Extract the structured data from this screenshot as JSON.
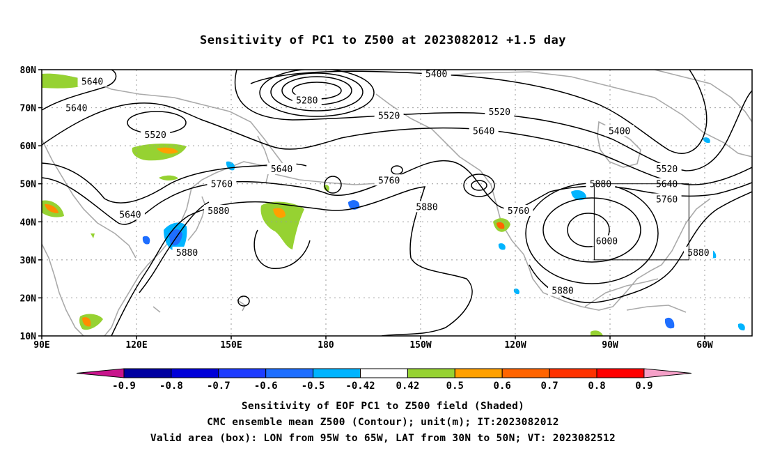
{
  "title": "Sensitivity of PC1 to Z500 at 2023082012 +1.5 day",
  "map": {
    "lat_ticks": [
      "80N",
      "70N",
      "60N",
      "50N",
      "40N",
      "30N",
      "20N",
      "10N"
    ],
    "lon_ticks": [
      "90E",
      "120E",
      "150E",
      "180",
      "150W",
      "120W",
      "90W",
      "60W"
    ],
    "contour_labels": [
      {
        "text": "5640",
        "lon": 106,
        "lat": 77
      },
      {
        "text": "5640",
        "lon": 101,
        "lat": 70
      },
      {
        "text": "5520",
        "lon": 126,
        "lat": 63
      },
      {
        "text": "5280",
        "lon": 174,
        "lat": 72
      },
      {
        "text": "5400",
        "lon": -145,
        "lat": 79
      },
      {
        "text": "5520",
        "lon": -160,
        "lat": 68
      },
      {
        "text": "5520",
        "lon": -125,
        "lat": 69
      },
      {
        "text": "5640",
        "lon": -130,
        "lat": 64
      },
      {
        "text": "5400",
        "lon": -87,
        "lat": 64
      },
      {
        "text": "5640",
        "lon": 166,
        "lat": 54
      },
      {
        "text": "5760",
        "lon": 147,
        "lat": 50
      },
      {
        "text": "5880",
        "lon": 146,
        "lat": 43
      },
      {
        "text": "5640",
        "lon": 118,
        "lat": 42
      },
      {
        "text": "5760",
        "lon": -160,
        "lat": 51
      },
      {
        "text": "5880",
        "lon": -148,
        "lat": 44
      },
      {
        "text": "5760",
        "lon": -119,
        "lat": 43
      },
      {
        "text": "5880",
        "lon": -93,
        "lat": 50
      },
      {
        "text": "5520",
        "lon": -72,
        "lat": 54
      },
      {
        "text": "5640",
        "lon": -72,
        "lat": 50
      },
      {
        "text": "5760",
        "lon": -72,
        "lat": 46
      },
      {
        "text": "6000",
        "lon": -91,
        "lat": 35
      },
      {
        "text": "5880",
        "lon": 136,
        "lat": 32
      },
      {
        "text": "5880",
        "lon": -62,
        "lat": 32
      },
      {
        "text": "5880",
        "lon": -105,
        "lat": 22
      }
    ],
    "valid_box": {
      "lon_west": -95,
      "lon_east": -65,
      "lat_south": 30,
      "lat_north": 50
    }
  },
  "colorbar": {
    "left_end_color": "#c8148c",
    "right_end_color": "#f5a0c8",
    "colors": [
      "#0000a0",
      "#0000d8",
      "#1e3cff",
      "#1e6eff",
      "#00b4ff",
      "#ffffff",
      "#96d232",
      "#ffa000",
      "#ff6400",
      "#ff3200",
      "#ff0000"
    ],
    "tick_labels": [
      "-0.9",
      "-0.8",
      "-0.7",
      "-0.6",
      "-0.5",
      "-0.42",
      "0.42",
      "0.5",
      "0.6",
      "0.7",
      "0.8",
      "0.9"
    ]
  },
  "captions": {
    "line1": "Sensitivity of EOF PC1 to Z500 field (Shaded)",
    "line2": "CMC ensemble mean Z500 (Contour); unit(m); IT:2023082012",
    "line3": "Valid area (box): LON from 95W to 65W, LAT from 30N to 50N; VT: 2023082512"
  }
}
